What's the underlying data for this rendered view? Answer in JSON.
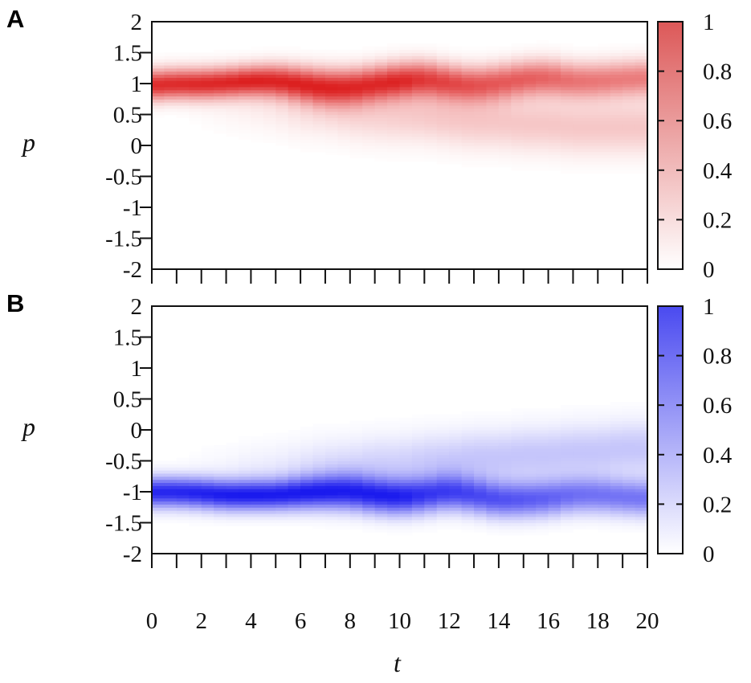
{
  "chart_data": [
    {
      "type": "heatmap",
      "panel_label": "A",
      "xlabel": "t",
      "ylabel": "p",
      "xlim": [
        0,
        20
      ],
      "ylim": [
        -2,
        2
      ],
      "x_ticks": [
        0,
        1,
        2,
        3,
        4,
        5,
        6,
        7,
        8,
        9,
        10,
        11,
        12,
        13,
        14,
        15,
        16,
        17,
        18,
        19,
        20
      ],
      "x_tick_labels": [
        "0",
        "2",
        "4",
        "6",
        "8",
        "10",
        "12",
        "14",
        "16",
        "18",
        "20"
      ],
      "y_tick_labels": [
        "2",
        "1.5",
        "1",
        "0.5",
        "0",
        "-0.5",
        "-1",
        "-1.5",
        "-2"
      ],
      "colorbar": {
        "range": [
          0,
          1
        ],
        "tick_labels": [
          "1",
          "0.8",
          "0.6",
          "0.4",
          "0.2",
          "0"
        ],
        "low_color": "#ffffff",
        "high_color": "#dc2020",
        "bar_high_color": "#dc5858"
      },
      "t": [
        0,
        1,
        2,
        3,
        4,
        5,
        6,
        7,
        8,
        9,
        10,
        11,
        12,
        13,
        14,
        15,
        16,
        17,
        18,
        19,
        20
      ],
      "ridge_center": [
        0.98,
        1.0,
        1.0,
        1.02,
        1.05,
        1.05,
        1.0,
        0.95,
        0.95,
        1.0,
        1.05,
        1.08,
        1.02,
        0.98,
        1.02,
        1.08,
        1.1,
        1.05,
        1.05,
        1.08,
        1.1
      ],
      "ridge_peak": [
        0.95,
        0.95,
        0.95,
        0.95,
        0.97,
        0.95,
        0.95,
        0.92,
        0.9,
        0.92,
        0.95,
        0.85,
        0.8,
        0.75,
        0.72,
        0.72,
        0.68,
        0.62,
        0.6,
        0.58,
        0.58
      ],
      "ridge_width": [
        0.17,
        0.17,
        0.17,
        0.17,
        0.17,
        0.18,
        0.19,
        0.2,
        0.2,
        0.2,
        0.2,
        0.2,
        0.2,
        0.2,
        0.2,
        0.2,
        0.2,
        0.2,
        0.2,
        0.2,
        0.2
      ],
      "tail_center": [
        0.8,
        0.8,
        0.75,
        0.7,
        0.7,
        0.65,
        0.6,
        0.6,
        0.55,
        0.5,
        0.5,
        0.5,
        0.45,
        0.4,
        0.4,
        0.35,
        0.35,
        0.3,
        0.3,
        0.3,
        0.3
      ],
      "tail_peak": [
        0,
        0,
        0.03,
        0.05,
        0.08,
        0.1,
        0.14,
        0.17,
        0.2,
        0.2,
        0.22,
        0.24,
        0.25,
        0.25,
        0.25,
        0.25,
        0.25,
        0.25,
        0.25,
        0.25,
        0.25
      ],
      "tail_width": 0.3
    },
    {
      "type": "heatmap",
      "panel_label": "B",
      "xlabel": "t",
      "ylabel": "p",
      "xlim": [
        0,
        20
      ],
      "ylim": [
        -2,
        2
      ],
      "x_ticks": [
        0,
        1,
        2,
        3,
        4,
        5,
        6,
        7,
        8,
        9,
        10,
        11,
        12,
        13,
        14,
        15,
        16,
        17,
        18,
        19,
        20
      ],
      "x_tick_labels": [
        "0",
        "2",
        "4",
        "6",
        "8",
        "10",
        "12",
        "14",
        "16",
        "18",
        "20"
      ],
      "y_tick_labels": [
        "2",
        "1.5",
        "1",
        "0.5",
        "0",
        "-0.5",
        "-1",
        "-1.5",
        "-2"
      ],
      "colorbar": {
        "range": [
          0,
          1
        ],
        "tick_labels": [
          "1",
          "0.8",
          "0.6",
          "0.4",
          "0.2",
          "0"
        ],
        "low_color": "#ffffff",
        "high_color": "#1a1aee",
        "bar_high_color": "#4a4af0"
      },
      "t": [
        0,
        1,
        2,
        3,
        4,
        5,
        6,
        7,
        8,
        9,
        10,
        11,
        12,
        13,
        14,
        15,
        16,
        17,
        18,
        19,
        20
      ],
      "ridge_center": [
        -1.0,
        -1.0,
        -1.02,
        -1.05,
        -1.05,
        -1.05,
        -1.02,
        -1.0,
        -1.0,
        -1.05,
        -1.08,
        -1.05,
        -1.0,
        -1.05,
        -1.12,
        -1.12,
        -1.1,
        -1.05,
        -1.05,
        -1.08,
        -1.1
      ],
      "ridge_peak": [
        0.95,
        0.95,
        0.95,
        0.97,
        0.97,
        0.95,
        0.95,
        0.95,
        0.92,
        0.95,
        0.95,
        0.85,
        0.8,
        0.78,
        0.75,
        0.72,
        0.68,
        0.62,
        0.6,
        0.6,
        0.6
      ],
      "ridge_width": [
        0.17,
        0.17,
        0.17,
        0.17,
        0.17,
        0.17,
        0.18,
        0.19,
        0.2,
        0.2,
        0.2,
        0.2,
        0.2,
        0.2,
        0.2,
        0.2,
        0.2,
        0.2,
        0.2,
        0.2,
        0.2
      ],
      "tail_center": [
        -0.8,
        -0.8,
        -0.75,
        -0.75,
        -0.7,
        -0.7,
        -0.65,
        -0.6,
        -0.6,
        -0.55,
        -0.55,
        -0.5,
        -0.5,
        -0.45,
        -0.45,
        -0.4,
        -0.4,
        -0.35,
        -0.35,
        -0.3,
        -0.3
      ],
      "tail_peak": [
        0,
        0,
        0.03,
        0.05,
        0.08,
        0.1,
        0.13,
        0.16,
        0.18,
        0.2,
        0.2,
        0.22,
        0.24,
        0.25,
        0.25,
        0.25,
        0.25,
        0.25,
        0.25,
        0.25,
        0.25
      ],
      "tail_width": 0.3
    }
  ]
}
